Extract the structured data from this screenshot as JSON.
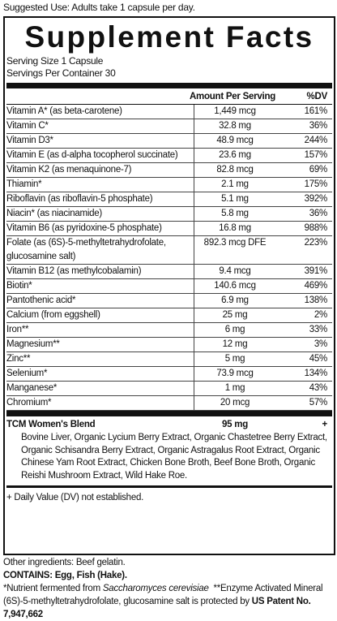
{
  "suggested_use": "Suggested Use: Adults take 1 capsule per day.",
  "title": "Supplement Facts",
  "serving_size": "Serving Size 1 Capsule",
  "servings_per_container": "Servings Per Container 30",
  "header": {
    "amount": "Amount Per Serving",
    "dv": "%DV"
  },
  "rows": [
    [
      "Vitamin A* (as beta-carotene)",
      "1,449 mcg",
      "161%"
    ],
    [
      "Vitamin C*",
      "32.8 mg",
      "36%"
    ],
    [
      "Vitamin D3*",
      "48.9 mcg",
      "244%"
    ],
    [
      "Vitamin E (as d-alpha tocopherol succinate)",
      "23.6 mg",
      "157%"
    ],
    [
      "Vitamin K2 (as menaquinone-7)",
      "82.8 mcg",
      "69%"
    ],
    [
      "Thiamin*",
      "2.1 mg",
      "175%"
    ],
    [
      "Riboflavin (as riboflavin-5 phosphate)",
      "5.1 mg",
      "392%"
    ],
    [
      "Niacin* (as niacinamide)",
      "5.8 mg",
      "36%"
    ],
    [
      "Vitamin B6 (as pyridoxine-5 phosphate)",
      "16.8 mg",
      "988%"
    ],
    [
      "Folate (as (6S)-5-methyltetrahydrofolate, glucosamine salt)",
      "892.3 mcg DFE",
      "223%"
    ],
    [
      "Vitamin B12 (as methylcobalamin)",
      "9.4 mcg",
      "391%"
    ],
    [
      "Biotin*",
      "140.6 mcg",
      "469%"
    ],
    [
      "Pantothenic acid*",
      "6.9 mg",
      "138%"
    ],
    [
      "Calcium (from eggshell)",
      "25 mg",
      "2%"
    ],
    [
      "Iron**",
      "6 mg",
      "33%"
    ],
    [
      "Magnesium**",
      "12 mg",
      "3%"
    ],
    [
      "Zinc**",
      "5 mg",
      "45%"
    ],
    [
      "Selenium*",
      "73.9 mcg",
      "134%"
    ],
    [
      "Manganese*",
      "1 mg",
      "43%"
    ],
    [
      "Chromium*",
      "20 mcg",
      "57%"
    ]
  ],
  "blend": {
    "name": "TCM Women's Blend",
    "amount": "95 mg",
    "dv": "+",
    "ingredients": "Bovine Liver, Organic Lycium Berry Extract, Organic Chastetree Berry Extract, Organic Schisandra Berry Extract, Organic Astragalus Root Extract, Organic Chinese Yam Root Extract, Chicken Bone Broth, Beef Bone Broth, Organic Reishi Mushroom Extract, Wild Hake Roe."
  },
  "footnote": "+ Daily Value (DV) not established.",
  "other_ingredients": "Other ingredients: Beef gelatin.",
  "contains": "CONTAINS: Egg, Fish (Hake).",
  "notes": {
    "fermented": "*Nutrient fermented from",
    "organism": "Saccharomyces cerevisiae",
    "enzyme": "**Enzyme Activated Mineral",
    "patent_text": "(6S)-5-methyltetrahydrofolate, glucosamine salt is protected by",
    "patent_no": "US Patent No. 7,947,662"
  }
}
